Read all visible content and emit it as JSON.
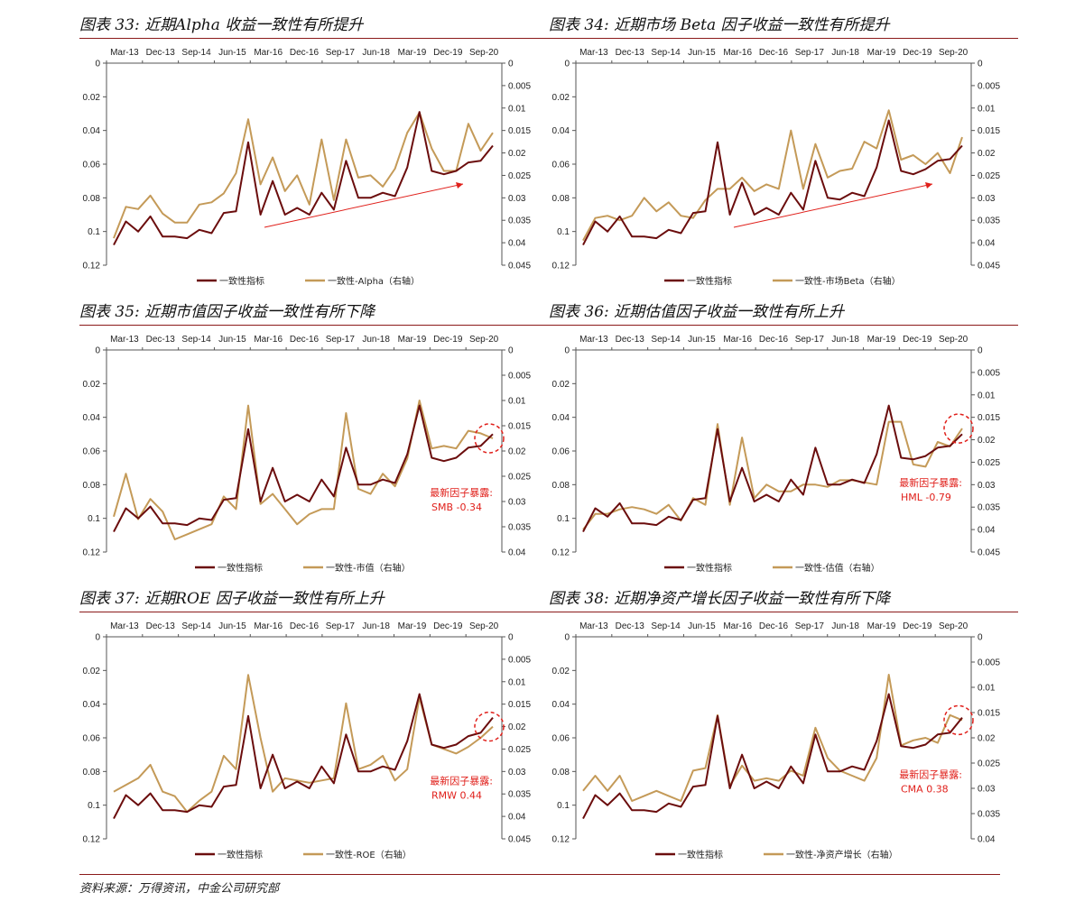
{
  "chart_data": [
    {
      "type": "line",
      "title": "图表 33: 近期Alpha 收益一致性有所提升",
      "x_tick_labels": [
        "Mar-13",
        "Dec-13",
        "Sep-14",
        "Jun-15",
        "Mar-16",
        "Dec-16",
        "Sep-17",
        "Jun-18",
        "Mar-19",
        "Dec-19",
        "Sep-20"
      ],
      "y_left": {
        "range": [
          0,
          0.12
        ],
        "inverted": true,
        "tick_labels": [
          "0",
          "0.02",
          "0.04",
          "0.06",
          "0.08",
          "0.1",
          "0.12"
        ]
      },
      "y_right": {
        "range": [
          0,
          0.045
        ],
        "inverted": true,
        "tick_labels": [
          "0",
          "0.005",
          "0.01",
          "0.015",
          "0.02",
          "0.025",
          "0.03",
          "0.035",
          "0.04",
          "0.045"
        ]
      },
      "legend": "bottom",
      "trend_arrow": true,
      "series": [
        {
          "name": "一致性指标",
          "axis": "left",
          "color": "#6b0d0d",
          "values": [
            0.108,
            0.094,
            0.1,
            0.091,
            0.103,
            0.103,
            0.104,
            0.099,
            0.101,
            0.089,
            0.088,
            0.047,
            0.09,
            0.07,
            0.09,
            0.086,
            0.09,
            0.077,
            0.087,
            0.058,
            0.08,
            0.08,
            0.077,
            0.079,
            0.062,
            0.029,
            0.064,
            0.066,
            0.064,
            0.059,
            0.058,
            0.049
          ]
        },
        {
          "name": "一致性-Alpha（右轴）",
          "axis": "right",
          "color": "#c49a58",
          "values": [
            0.039,
            0.032,
            0.0325,
            0.0295,
            0.0335,
            0.0355,
            0.0355,
            0.0315,
            0.031,
            0.029,
            0.0245,
            0.0125,
            0.027,
            0.021,
            0.0285,
            0.025,
            0.0315,
            0.017,
            0.0305,
            0.017,
            0.0255,
            0.025,
            0.0275,
            0.0235,
            0.0155,
            0.011,
            0.019,
            0.024,
            0.024,
            0.0135,
            0.0195,
            0.0155
          ]
        }
      ]
    },
    {
      "type": "line",
      "title": "图表 34: 近期市场 Beta 因子收益一致性有所提升",
      "x_tick_labels": [
        "Mar-13",
        "Dec-13",
        "Sep-14",
        "Jun-15",
        "Mar-16",
        "Dec-16",
        "Sep-17",
        "Jun-18",
        "Mar-19",
        "Dec-19",
        "Sep-20"
      ],
      "y_left": {
        "range": [
          0,
          0.12
        ],
        "inverted": true,
        "tick_labels": [
          "0",
          "0.02",
          "0.04",
          "0.06",
          "0.08",
          "0.1",
          "0.12"
        ]
      },
      "y_right": {
        "range": [
          0,
          0.045
        ],
        "inverted": true,
        "tick_labels": [
          "0",
          "0.005",
          "0.01",
          "0.015",
          "0.02",
          "0.025",
          "0.03",
          "0.035",
          "0.04",
          "0.045"
        ]
      },
      "legend": "bottom",
      "trend_arrow": true,
      "series": [
        {
          "name": "一致性指标",
          "axis": "left",
          "color": "#6b0d0d",
          "values": [
            0.108,
            0.094,
            0.1,
            0.091,
            0.103,
            0.103,
            0.104,
            0.099,
            0.101,
            0.089,
            0.088,
            0.047,
            0.09,
            0.071,
            0.09,
            0.086,
            0.09,
            0.077,
            0.087,
            0.058,
            0.08,
            0.081,
            0.077,
            0.079,
            0.062,
            0.034,
            0.064,
            0.066,
            0.063,
            0.058,
            0.057,
            0.049
          ]
        },
        {
          "name": "一致性-市场Beta（右轴）",
          "axis": "right",
          "color": "#c49a58",
          "values": [
            0.0395,
            0.0345,
            0.034,
            0.035,
            0.034,
            0.03,
            0.033,
            0.031,
            0.034,
            0.0345,
            0.0305,
            0.028,
            0.028,
            0.0255,
            0.0285,
            0.027,
            0.028,
            0.015,
            0.028,
            0.018,
            0.0255,
            0.024,
            0.0235,
            0.0175,
            0.019,
            0.0105,
            0.0215,
            0.0205,
            0.0225,
            0.02,
            0.0245,
            0.0165
          ]
        }
      ]
    },
    {
      "type": "line",
      "title": "图表 35: 近期市值因子收益一致性有所下降",
      "x_tick_labels": [
        "Mar-13",
        "Dec-13",
        "Sep-14",
        "Jun-15",
        "Mar-16",
        "Dec-16",
        "Sep-17",
        "Jun-18",
        "Mar-19",
        "Dec-19",
        "Sep-20"
      ],
      "y_left": {
        "range": [
          0,
          0.12
        ],
        "inverted": true,
        "tick_labels": [
          "0",
          "0.02",
          "0.04",
          "0.06",
          "0.08",
          "0.1",
          "0.12"
        ]
      },
      "y_right": {
        "range": [
          0,
          0.04
        ],
        "inverted": true,
        "tick_labels": [
          "0",
          "0.005",
          "0.01",
          "0.015",
          "0.02",
          "0.025",
          "0.03",
          "0.035",
          "0.04"
        ]
      },
      "legend": "bottom",
      "annotation": {
        "label": "最新因子暴露:",
        "value": "SMB -0.34"
      },
      "series": [
        {
          "name": "一致性指标",
          "axis": "left",
          "color": "#6b0d0d",
          "values": [
            0.108,
            0.094,
            0.1,
            0.093,
            0.103,
            0.103,
            0.104,
            0.1,
            0.101,
            0.089,
            0.088,
            0.047,
            0.09,
            0.07,
            0.09,
            0.086,
            0.09,
            0.077,
            0.087,
            0.058,
            0.08,
            0.08,
            0.077,
            0.079,
            0.062,
            0.033,
            0.064,
            0.066,
            0.064,
            0.058,
            0.057,
            0.05
          ]
        },
        {
          "name": "一致性-市值（右轴）",
          "axis": "right",
          "color": "#c49a58",
          "values": [
            0.033,
            0.0245,
            0.0335,
            0.0295,
            0.032,
            0.0375,
            0.0365,
            0.0355,
            0.0345,
            0.029,
            0.0315,
            0.011,
            0.0305,
            0.0285,
            0.0315,
            0.0345,
            0.0325,
            0.0315,
            0.0315,
            0.0125,
            0.0275,
            0.0285,
            0.0245,
            0.027,
            0.0215,
            0.01,
            0.0195,
            0.019,
            0.0195,
            0.016,
            0.0165,
            0.0175
          ]
        }
      ]
    },
    {
      "type": "line",
      "title": "图表 36: 近期估值因子收益一致性有所上升",
      "x_tick_labels": [
        "Mar-13",
        "Dec-13",
        "Sep-14",
        "Jun-15",
        "Mar-16",
        "Dec-16",
        "Sep-17",
        "Jun-18",
        "Mar-19",
        "Dec-19",
        "Sep-20"
      ],
      "y_left": {
        "range": [
          0,
          0.12
        ],
        "inverted": true,
        "tick_labels": [
          "0",
          "0.02",
          "0.04",
          "0.06",
          "0.08",
          "0.1",
          "0.12"
        ]
      },
      "y_right": {
        "range": [
          0,
          0.045
        ],
        "inverted": true,
        "tick_labels": [
          "0",
          "0.005",
          "0.01",
          "0.015",
          "0.02",
          "0.025",
          "0.03",
          "0.035",
          "0.04",
          "0.045"
        ]
      },
      "legend": "bottom",
      "annotation": {
        "label": "最新因子暴露:",
        "value": "HML -0.79"
      },
      "series": [
        {
          "name": "一致性指标",
          "axis": "left",
          "color": "#6b0d0d",
          "values": [
            0.108,
            0.094,
            0.099,
            0.091,
            0.103,
            0.103,
            0.104,
            0.099,
            0.101,
            0.089,
            0.088,
            0.047,
            0.09,
            0.07,
            0.09,
            0.086,
            0.09,
            0.077,
            0.086,
            0.058,
            0.08,
            0.08,
            0.077,
            0.079,
            0.062,
            0.033,
            0.064,
            0.065,
            0.063,
            0.058,
            0.057,
            0.05
          ]
        },
        {
          "name": "一致性-估值（右轴）",
          "axis": "right",
          "color": "#c49a58",
          "values": [
            0.04,
            0.0365,
            0.0365,
            0.0355,
            0.035,
            0.0355,
            0.0365,
            0.0345,
            0.038,
            0.033,
            0.0345,
            0.0165,
            0.0345,
            0.0195,
            0.033,
            0.03,
            0.0315,
            0.0315,
            0.03,
            0.03,
            0.0305,
            0.029,
            0.029,
            0.0295,
            0.03,
            0.016,
            0.016,
            0.0255,
            0.026,
            0.0205,
            0.0215,
            0.0175
          ]
        }
      ]
    },
    {
      "type": "line",
      "title": "图表 37: 近期ROE 因子收益一致性有所上升",
      "x_tick_labels": [
        "Mar-13",
        "Dec-13",
        "Sep-14",
        "Jun-15",
        "Mar-16",
        "Dec-16",
        "Sep-17",
        "Jun-18",
        "Mar-19",
        "Dec-19",
        "Sep-20"
      ],
      "y_left": {
        "range": [
          0,
          0.12
        ],
        "inverted": true,
        "tick_labels": [
          "0",
          "0.02",
          "0.04",
          "0.06",
          "0.08",
          "0.1",
          "0.12"
        ]
      },
      "y_right": {
        "range": [
          0,
          0.045
        ],
        "inverted": true,
        "tick_labels": [
          "0",
          "0.005",
          "0.01",
          "0.015",
          "0.02",
          "0.025",
          "0.03",
          "0.035",
          "0.04",
          "0.045"
        ]
      },
      "legend": "bottom",
      "annotation": {
        "label": "最新因子暴露:",
        "value": "RMW 0.44"
      },
      "series": [
        {
          "name": "一致性指标",
          "axis": "left",
          "color": "#6b0d0d",
          "values": [
            0.108,
            0.094,
            0.1,
            0.093,
            0.103,
            0.103,
            0.104,
            0.1,
            0.101,
            0.089,
            0.088,
            0.047,
            0.09,
            0.07,
            0.09,
            0.086,
            0.09,
            0.077,
            0.087,
            0.058,
            0.08,
            0.08,
            0.077,
            0.079,
            0.062,
            0.034,
            0.064,
            0.066,
            0.064,
            0.059,
            0.057,
            0.048
          ]
        },
        {
          "name": "一致性-ROE（右轴）",
          "axis": "right",
          "color": "#c49a58",
          "values": [
            0.0345,
            0.033,
            0.0315,
            0.0285,
            0.0345,
            0.0355,
            0.039,
            0.0365,
            0.0345,
            0.0265,
            0.0295,
            0.0085,
            0.0225,
            0.0345,
            0.0315,
            0.032,
            0.0325,
            0.032,
            0.0315,
            0.0148,
            0.0295,
            0.0285,
            0.0265,
            0.032,
            0.0295,
            0.0135,
            0.024,
            0.025,
            0.026,
            0.0245,
            0.0225,
            0.02
          ]
        }
      ]
    },
    {
      "type": "line",
      "title": "图表 38: 近期净资产增长因子收益一致性有所下降",
      "x_tick_labels": [
        "Mar-13",
        "Dec-13",
        "Sep-14",
        "Jun-15",
        "Mar-16",
        "Dec-16",
        "Sep-17",
        "Jun-18",
        "Mar-19",
        "Dec-19",
        "Sep-20"
      ],
      "y_left": {
        "range": [
          0,
          0.12
        ],
        "inverted": true,
        "tick_labels": [
          "0",
          "0.02",
          "0.04",
          "0.06",
          "0.08",
          "0.1",
          "0.12"
        ]
      },
      "y_right": {
        "range": [
          0,
          0.04
        ],
        "inverted": true,
        "tick_labels": [
          "0",
          "0.005",
          "0.01",
          "0.015",
          "0.02",
          "0.025",
          "0.03",
          "0.035",
          "0.04"
        ]
      },
      "legend": "bottom",
      "annotation": {
        "label": "最新因子暴露:",
        "value": "CMA 0.38"
      },
      "series": [
        {
          "name": "一致性指标",
          "axis": "left",
          "color": "#6b0d0d",
          "values": [
            0.108,
            0.094,
            0.1,
            0.093,
            0.103,
            0.103,
            0.104,
            0.099,
            0.101,
            0.089,
            0.088,
            0.047,
            0.09,
            0.07,
            0.09,
            0.086,
            0.09,
            0.077,
            0.087,
            0.058,
            0.08,
            0.08,
            0.077,
            0.079,
            0.062,
            0.034,
            0.065,
            0.066,
            0.064,
            0.058,
            0.057,
            0.048
          ]
        },
        {
          "name": "一致性-净资产增长（右轴）",
          "axis": "right",
          "color": "#c49a58",
          "values": [
            0.0305,
            0.0275,
            0.0305,
            0.0275,
            0.0325,
            0.0315,
            0.0305,
            0.0315,
            0.0325,
            0.0265,
            0.026,
            0.0155,
            0.0295,
            0.0255,
            0.0285,
            0.028,
            0.0285,
            0.0265,
            0.0275,
            0.018,
            0.024,
            0.0265,
            0.0275,
            0.0285,
            0.024,
            0.0075,
            0.0215,
            0.0205,
            0.02,
            0.021,
            0.0155,
            0.0165
          ]
        }
      ]
    }
  ],
  "footer": {
    "source": "资料来源：万得资讯，中金公司研究部"
  }
}
